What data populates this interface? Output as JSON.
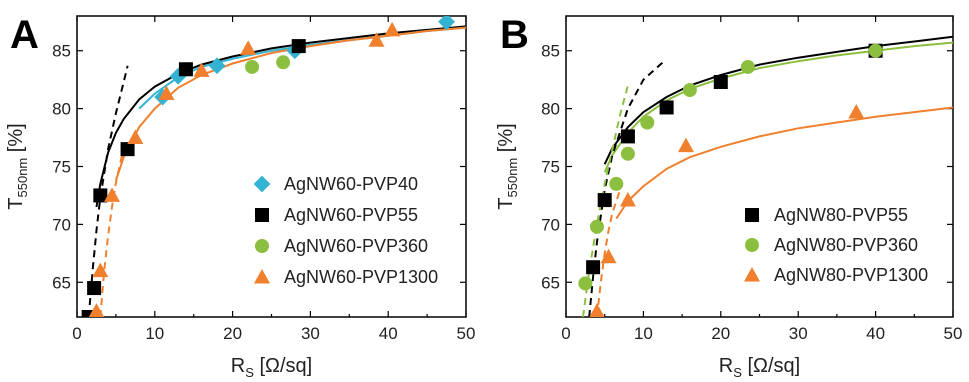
{
  "chart_data": [
    {
      "type": "scatter",
      "panel_label": "A",
      "xlabel_main": "R",
      "xlabel_sub": "S",
      "xlabel_unit": " [Ω/sq]",
      "ylabel_main": "T",
      "ylabel_sub": "550nm",
      "ylabel_unit": " [%]",
      "xlim": [
        0,
        50
      ],
      "ylim": [
        62,
        88
      ],
      "xticks": [
        0,
        10,
        20,
        30,
        40,
        50
      ],
      "yticks": [
        65,
        70,
        75,
        80,
        85
      ],
      "grid": false,
      "legend_position": "center-right",
      "series": [
        {
          "name": "AgNW60-PVP40",
          "marker": "diamond",
          "color": "#33b3d1",
          "x": [
            11.0,
            13.0,
            18.0,
            28.0,
            47.5
          ],
          "y": [
            81.0,
            82.8,
            83.7,
            85.0,
            87.5
          ]
        },
        {
          "name": "AgNW60-PVP55",
          "marker": "square",
          "color": "#000000",
          "x": [
            1.5,
            2.2,
            3.0,
            6.5,
            14.0,
            28.5
          ],
          "y": [
            62.0,
            64.5,
            72.5,
            76.5,
            83.4,
            85.4
          ]
        },
        {
          "name": "AgNW60-PVP360",
          "marker": "circle",
          "color": "#8cbf3f",
          "x": [
            22.5,
            26.5
          ],
          "y": [
            83.6,
            84.0
          ]
        },
        {
          "name": "AgNW60-PVP1300",
          "marker": "triangle",
          "color": "#f07f2e",
          "x": [
            2.5,
            3.0,
            4.5,
            7.5,
            11.5,
            16.0,
            22.0,
            38.5,
            40.5
          ],
          "y": [
            62.5,
            66.0,
            72.5,
            77.5,
            81.3,
            83.3,
            85.2,
            85.9,
            86.8
          ]
        }
      ],
      "fit_curves": [
        {
          "color": "#000000",
          "style": "solid",
          "x": [
            2.5,
            3,
            4,
            5,
            6,
            8,
            10,
            13,
            16,
            20,
            25,
            30,
            35,
            40,
            45,
            50
          ],
          "y": [
            71.5,
            73.5,
            76.2,
            77.9,
            79.1,
            80.8,
            81.9,
            83.0,
            83.8,
            84.5,
            85.2,
            85.7,
            86.1,
            86.5,
            86.8,
            87.1
          ]
        },
        {
          "color": "#33b3d1",
          "style": "solid",
          "x": [
            8,
            10,
            13,
            16,
            20,
            25,
            30,
            35,
            40,
            45,
            50
          ],
          "y": [
            80.0,
            81.3,
            82.7,
            83.6,
            84.3,
            85.0,
            85.5,
            85.9,
            86.3,
            86.7,
            87.0
          ]
        },
        {
          "color": "#f07f2e",
          "style": "solid",
          "x": [
            5,
            6,
            8,
            10,
            13,
            16,
            20,
            25,
            30,
            35,
            40,
            45,
            50
          ],
          "y": [
            73.8,
            75.8,
            78.4,
            80.0,
            81.8,
            82.9,
            83.9,
            84.8,
            85.4,
            85.9,
            86.3,
            86.7,
            87.0
          ]
        },
        {
          "color": "#000000",
          "style": "dashed",
          "x": [
            1.5,
            2,
            2.5,
            3,
            4,
            5,
            6,
            6.5
          ],
          "y": [
            62.0,
            66.0,
            69.5,
            72.3,
            76.5,
            79.6,
            82.3,
            83.7
          ]
        },
        {
          "color": "#f07f2e",
          "style": "dashed",
          "x": [
            3.0,
            3.5,
            4,
            4.5,
            5,
            6
          ],
          "y": [
            62.0,
            66.0,
            69.0,
            71.5,
            73.6,
            76.6
          ]
        }
      ]
    },
    {
      "type": "scatter",
      "panel_label": "B",
      "xlabel_main": "R",
      "xlabel_sub": "S",
      "xlabel_unit": " [Ω/sq]",
      "ylabel_main": "T",
      "ylabel_sub": "550nm",
      "ylabel_unit": " [%]",
      "xlim": [
        0,
        50
      ],
      "ylim": [
        62,
        88
      ],
      "xticks": [
        0,
        10,
        20,
        30,
        40,
        50
      ],
      "yticks": [
        65,
        70,
        75,
        80,
        85
      ],
      "grid": false,
      "legend_position": "bottom-right",
      "series": [
        {
          "name": "AgNW80-PVP55",
          "marker": "square",
          "color": "#000000",
          "x": [
            3.5,
            5.0,
            8.0,
            13.0,
            20.0,
            40.0
          ],
          "y": [
            66.3,
            72.1,
            77.6,
            80.1,
            82.3,
            85.0
          ]
        },
        {
          "name": "AgNW80-PVP360",
          "marker": "circle",
          "color": "#8cbf3f",
          "x": [
            2.5,
            4.0,
            6.5,
            8.0,
            10.5,
            16.0,
            23.5,
            40.0
          ],
          "y": [
            64.9,
            69.8,
            73.5,
            76.1,
            78.8,
            81.6,
            83.6,
            85.0
          ]
        },
        {
          "name": "AgNW80-PVP1300",
          "marker": "triangle",
          "color": "#f07f2e",
          "x": [
            4.0,
            5.5,
            8.0,
            15.5,
            37.5
          ],
          "y": [
            62.5,
            67.2,
            72.1,
            76.8,
            79.7
          ]
        }
      ],
      "fit_curves": [
        {
          "color": "#000000",
          "style": "solid",
          "x": [
            5,
            6,
            8,
            10,
            13,
            16,
            20,
            25,
            30,
            35,
            40,
            45,
            50
          ],
          "y": [
            75.2,
            76.6,
            78.4,
            79.7,
            81.0,
            82.0,
            82.9,
            83.8,
            84.4,
            84.9,
            85.4,
            85.8,
            86.2
          ]
        },
        {
          "color": "#8cbf3f",
          "style": "solid",
          "x": [
            5,
            6,
            8,
            10,
            13,
            16,
            20,
            25,
            30,
            35,
            40,
            45,
            50
          ],
          "y": [
            74.5,
            76.0,
            77.9,
            79.3,
            80.7,
            81.7,
            82.6,
            83.5,
            84.1,
            84.6,
            85.0,
            85.4,
            85.7
          ]
        },
        {
          "color": "#f07f2e",
          "style": "solid",
          "x": [
            6.5,
            8,
            10,
            13,
            16,
            20,
            25,
            30,
            35,
            40,
            45,
            50
          ],
          "y": [
            70.5,
            72.0,
            73.3,
            74.8,
            75.8,
            76.7,
            77.6,
            78.3,
            78.8,
            79.3,
            79.7,
            80.1
          ]
        },
        {
          "color": "#000000",
          "style": "dashed",
          "x": [
            3.0,
            3.5,
            4,
            5,
            6,
            8,
            10,
            12.5
          ],
          "y": [
            62.0,
            65.5,
            68.5,
            73.0,
            76.0,
            80.0,
            82.5,
            84.0
          ]
        },
        {
          "color": "#8cbf3f",
          "style": "dashed",
          "x": [
            2.2,
            3,
            4,
            5,
            6,
            7,
            8
          ],
          "y": [
            62.0,
            66.0,
            70.0,
            73.5,
            76.5,
            79.5,
            82.0
          ]
        },
        {
          "color": "#f07f2e",
          "style": "dashed",
          "x": [
            4.0,
            4.5,
            5,
            5.5,
            6,
            7
          ],
          "y": [
            62.0,
            65.0,
            67.5,
            69.5,
            71.0,
            73.0
          ]
        }
      ]
    }
  ]
}
